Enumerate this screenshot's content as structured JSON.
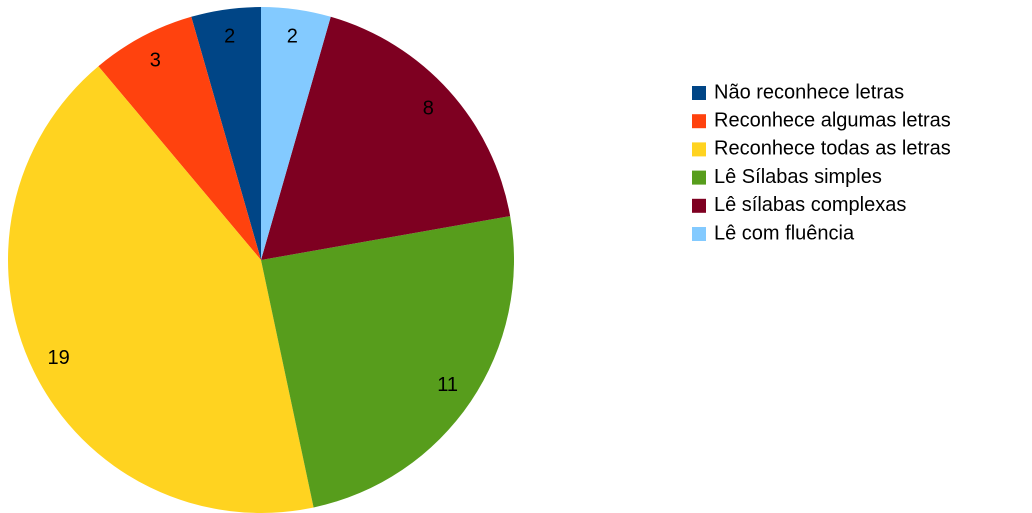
{
  "chart_data": {
    "type": "pie",
    "categories": [
      "Não reconhece letras",
      "Reconhece algumas letras",
      "Reconhece todas as letras",
      "Lê Sílabas simples",
      "Lê sílabas complexas",
      "Lê com fluência"
    ],
    "values": [
      2,
      3,
      19,
      11,
      8,
      2
    ],
    "colors": [
      "#004586",
      "#ff420e",
      "#ffd320",
      "#579d1c",
      "#7e0021",
      "#83caff"
    ],
    "legend": "right"
  }
}
